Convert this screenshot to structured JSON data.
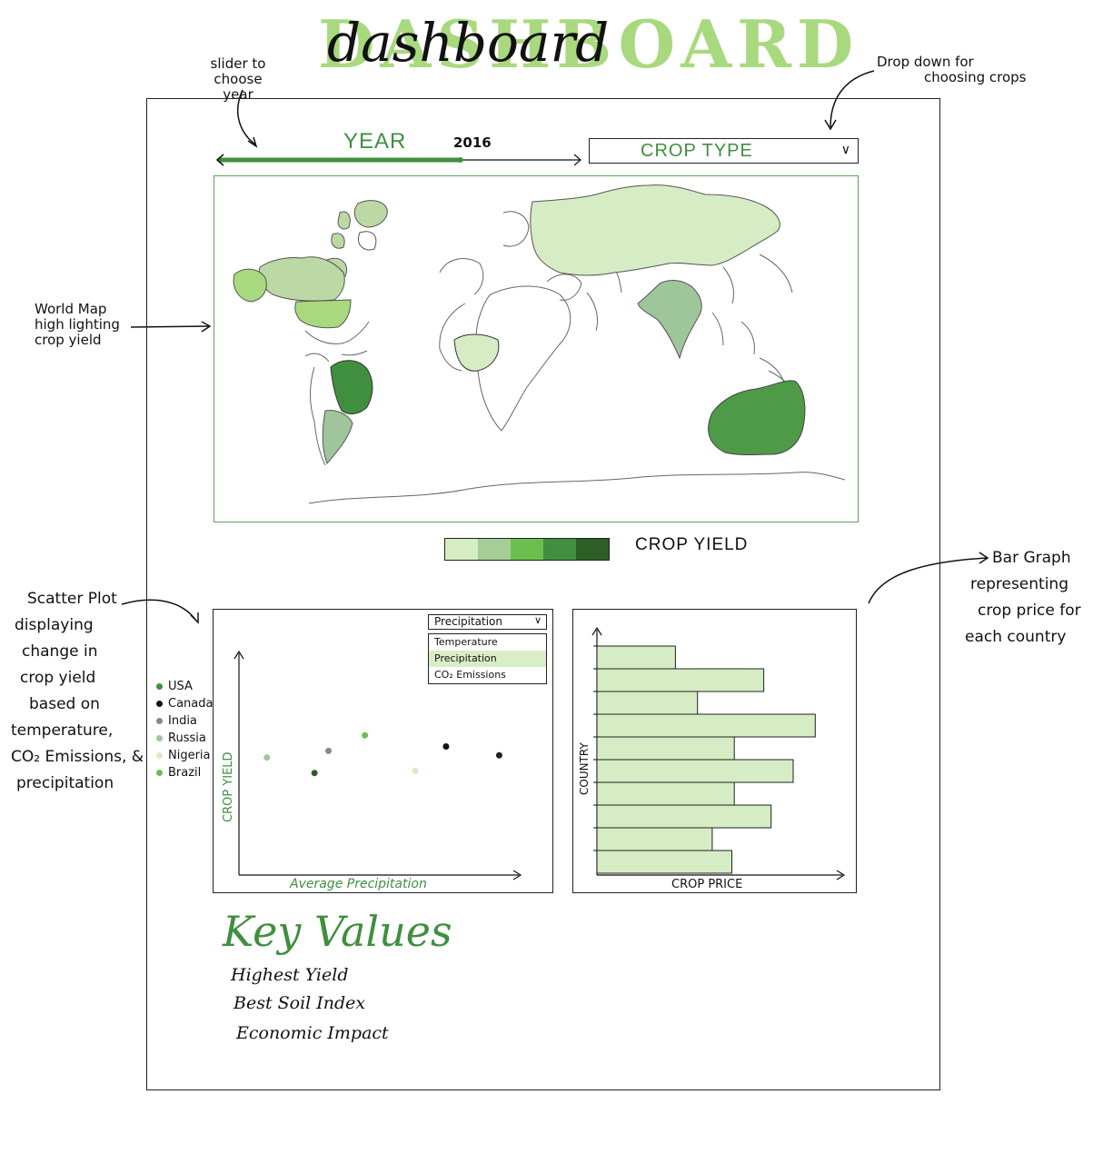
{
  "header": {
    "title": "DASHBOARD",
    "title_script": "dashboard"
  },
  "annotations": {
    "slider_note": [
      "slider to choose",
      "year"
    ],
    "dropdown_note": [
      "Drop down for",
      "choosing crops"
    ],
    "map_note": [
      "World Map",
      "high lighting",
      "crop yield"
    ],
    "scatter_note": [
      "Scatter Plot",
      "displaying",
      "change in",
      "crop yield",
      "based on",
      "temperature,",
      "CO₂ Emissions, &",
      "precipitation"
    ],
    "bar_note": [
      "Bar Graph",
      "representing",
      "crop price for",
      "each country"
    ]
  },
  "year_slider": {
    "label": "YEAR",
    "value": "2016",
    "fill_fraction": 0.67
  },
  "crop_dropdown": {
    "label": "CROP TYPE",
    "icon": "chevron-down-icon"
  },
  "map": {
    "legend_label": "CROP YIELD",
    "scale_colors": [
      "#d6ecc4",
      "#a5cd98",
      "#6bbf4e",
      "#3f8f3f",
      "#2c5e26"
    ],
    "highlighted": [
      {
        "region": "russia",
        "color": "#d6ecc4"
      },
      {
        "region": "india",
        "color": "#9fc69a"
      },
      {
        "region": "australia",
        "color": "#4f9a47"
      },
      {
        "region": "brazil",
        "color": "#3f8f3f"
      },
      {
        "region": "canada",
        "color": "#bcd8a4"
      },
      {
        "region": "usa",
        "color": "#a9d97e"
      },
      {
        "region": "nigeria",
        "color": "#d6ecc4"
      },
      {
        "region": "greenland",
        "color": "#bcd8a4"
      }
    ]
  },
  "scatter": {
    "dropdown_value": "Precipitation",
    "options": [
      "Temperature",
      "Precipitation",
      "CO₂ Emissions"
    ],
    "selected_option": "Precipitation",
    "x_label": "Average Precipitation",
    "y_label": "CROP YIELD",
    "legend": [
      {
        "name": "USA",
        "color": "#3f8f3f"
      },
      {
        "name": "Canada",
        "color": "#111111"
      },
      {
        "name": "India",
        "color": "#888888"
      },
      {
        "name": "Russia",
        "color": "#9fc69a"
      },
      {
        "name": "Nigeria",
        "color": "#d6ecc4"
      },
      {
        "name": "Brazil",
        "color": "#6bbf4e"
      }
    ]
  },
  "chart_data": [
    {
      "type": "scatter",
      "xlabel": "Average Precipitation",
      "ylabel": "CROP YIELD",
      "xlim": [
        0,
        10
      ],
      "ylim": [
        0,
        10
      ],
      "points": [
        {
          "x": 1.0,
          "y": 5.3,
          "color": "#9fc69a"
        },
        {
          "x": 2.7,
          "y": 4.6,
          "color": "#2c5e26"
        },
        {
          "x": 3.2,
          "y": 5.6,
          "color": "#888888"
        },
        {
          "x": 4.5,
          "y": 6.3,
          "color": "#6bbf4e"
        },
        {
          "x": 6.3,
          "y": 4.7,
          "color": "#d6ecc4"
        },
        {
          "x": 7.4,
          "y": 5.8,
          "color": "#111111"
        },
        {
          "x": 9.3,
          "y": 5.4,
          "color": "#222222"
        }
      ]
    },
    {
      "type": "bar",
      "orientation": "horizontal",
      "xlabel": "CROP PRICE",
      "ylabel": "COUNTRY",
      "xlim": [
        0,
        10
      ],
      "values": [
        3.2,
        6.8,
        4.1,
        8.9,
        5.6,
        8.0,
        5.6,
        7.1,
        4.7,
        5.5
      ]
    }
  ],
  "key_values": {
    "title": "Key Values",
    "items": [
      "Highest Yield",
      "Best Soil Index",
      "Economic Impact"
    ]
  }
}
